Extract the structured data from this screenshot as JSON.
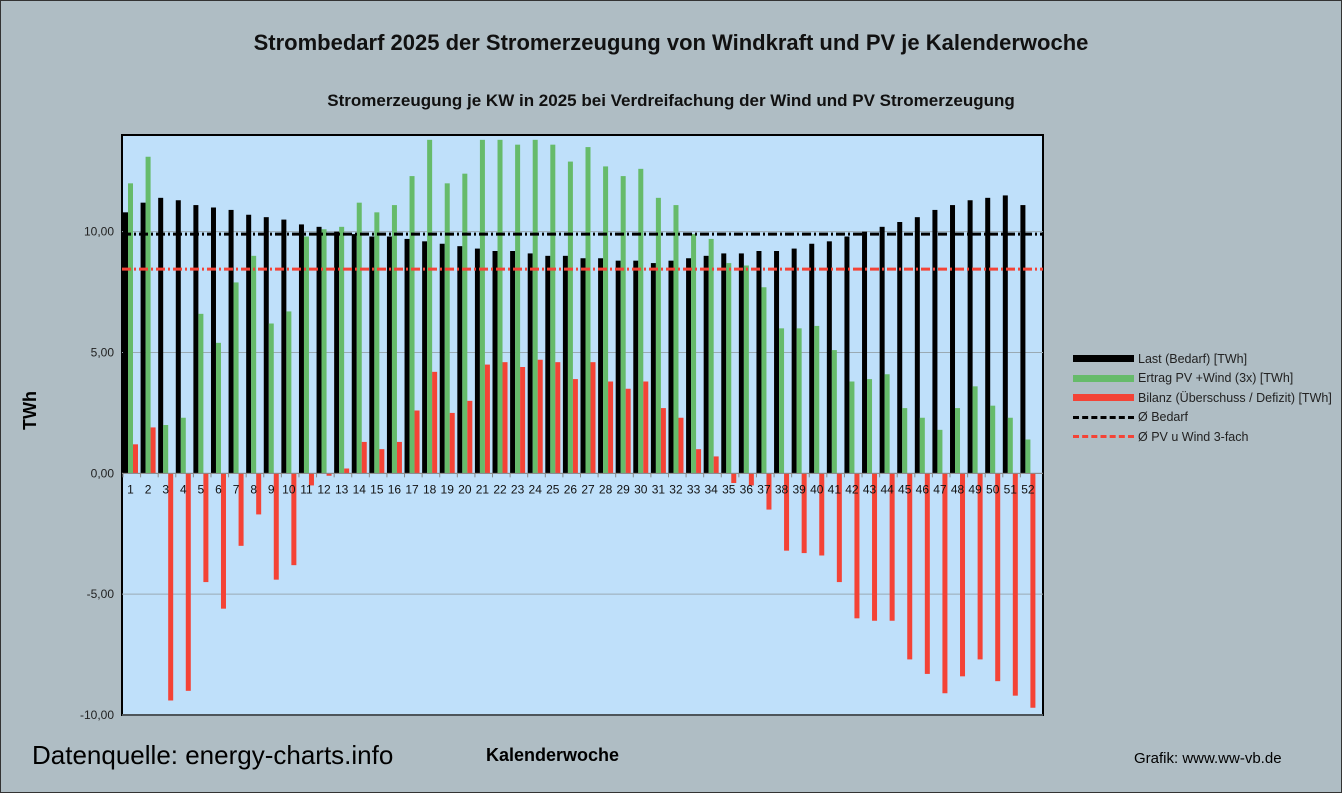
{
  "title": "Strombedarf 2025 der Stromerzeugung von Windkraft und PV je Kalenderwoche",
  "footer": {
    "source": "Datenquelle: energy-charts.info",
    "credit": "Grafik: www.ww-vb.de"
  },
  "colors": {
    "last": "#000000",
    "ertrag": "#66bb6a",
    "bilanz": "#f44336",
    "avg_bedarf": "#000000",
    "avg_pv": "#f44336",
    "plot_bg": "#bfe0fa"
  },
  "chart_data": {
    "type": "bar",
    "title": "Stromerzeugung je KW in 2025 bei Verdreifachung der Wind und PV Stromerzeugung",
    "xlabel": "Kalenderwoche",
    "ylabel": "TWh",
    "ylim": [
      -10,
      14
    ],
    "yticks": [
      10,
      5,
      0,
      -5,
      -10
    ],
    "ytick_labels": [
      "10,00",
      "5,00",
      "0,00",
      "-5,00",
      "-10,00"
    ],
    "grid": true,
    "legend_position": "right",
    "categories": [
      "1",
      "2",
      "3",
      "4",
      "5",
      "6",
      "7",
      "8",
      "9",
      "10",
      "11",
      "12",
      "13",
      "14",
      "15",
      "16",
      "17",
      "18",
      "19",
      "20",
      "21",
      "22",
      "23",
      "24",
      "25",
      "26",
      "27",
      "28",
      "29",
      "30",
      "31",
      "32",
      "33",
      "34",
      "35",
      "36",
      "37",
      "38",
      "39",
      "40",
      "41",
      "42",
      "43",
      "44",
      "45",
      "46",
      "47",
      "48",
      "49",
      "50",
      "51",
      "52"
    ],
    "series": [
      {
        "name": "Last (Bedarf) [TWh]",
        "values": [
          10.8,
          11.2,
          11.4,
          11.3,
          11.1,
          11.0,
          10.9,
          10.7,
          10.6,
          10.5,
          10.3,
          10.2,
          10.0,
          9.9,
          9.8,
          9.8,
          9.7,
          9.6,
          9.5,
          9.4,
          9.3,
          9.2,
          9.2,
          9.1,
          9.0,
          9.0,
          8.9,
          8.9,
          8.8,
          8.8,
          8.7,
          8.8,
          8.9,
          9.0,
          9.1,
          9.1,
          9.2,
          9.2,
          9.3,
          9.5,
          9.6,
          9.8,
          10.0,
          10.2,
          10.4,
          10.6,
          10.9,
          11.1,
          11.3,
          11.4,
          11.5,
          11.1
        ]
      },
      {
        "name": "Ertrag PV +Wind (3x) [TWh]",
        "values": [
          12.0,
          13.1,
          2.0,
          2.3,
          6.6,
          5.4,
          7.9,
          9.0,
          6.2,
          6.7,
          9.8,
          10.1,
          10.2,
          11.2,
          10.8,
          11.1,
          12.3,
          13.8,
          12.0,
          12.4,
          13.8,
          13.8,
          13.6,
          13.8,
          13.6,
          12.9,
          13.5,
          12.7,
          12.3,
          12.6,
          11.4,
          11.1,
          9.9,
          9.7,
          8.7,
          8.6,
          7.7,
          6.0,
          6.0,
          6.1,
          5.1,
          3.8,
          3.9,
          4.1,
          2.7,
          2.3,
          1.8,
          2.7,
          3.6,
          2.8,
          2.3,
          1.4
        ]
      },
      {
        "name": "Bilanz (Überschuss / Defizit) [TWh]",
        "values": [
          1.2,
          1.9,
          -9.4,
          -9.0,
          -4.5,
          -5.6,
          -3.0,
          -1.7,
          -4.4,
          -3.8,
          -0.5,
          -0.1,
          0.2,
          1.3,
          1.0,
          1.3,
          2.6,
          4.2,
          2.5,
          3.0,
          4.5,
          4.6,
          4.4,
          4.7,
          4.6,
          3.9,
          4.6,
          3.8,
          3.5,
          3.8,
          2.7,
          2.3,
          1.0,
          0.7,
          -0.4,
          -0.5,
          -1.5,
          -3.2,
          -3.3,
          -3.4,
          -4.5,
          -6.0,
          -6.1,
          -6.1,
          -7.7,
          -8.3,
          -9.1,
          -8.4,
          -7.7,
          -8.6,
          -9.2,
          -9.7
        ]
      }
    ],
    "lines": [
      {
        "name": "Ø Bedarf",
        "value": 9.9
      },
      {
        "name": "Ø PV u Wind 3-fach",
        "value": 8.45
      }
    ]
  }
}
